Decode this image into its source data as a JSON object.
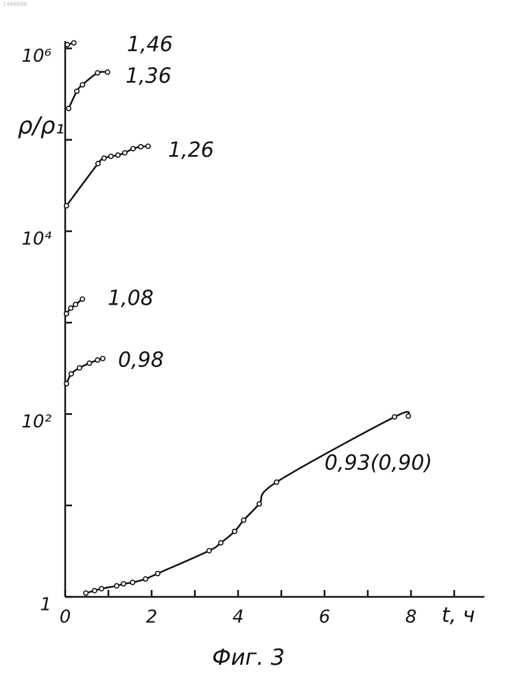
{
  "chart_data": {
    "type": "line",
    "doc_number": "1466696",
    "caption": "Фиг. 3",
    "x_label": "t, ч",
    "y_label": "ρ/ρ₁",
    "ylog": true,
    "xlim": [
      0,
      9.7
    ],
    "ylim": [
      1,
      1200000
    ],
    "xticks": [
      0,
      2,
      4,
      6,
      8
    ],
    "minor_xticks": [
      1,
      3,
      5,
      7,
      9
    ],
    "yticks": [
      1,
      {
        "value": 100,
        "label": "10²"
      },
      {
        "value": 10000,
        "label": "10⁴"
      },
      {
        "value": 1000000,
        "label": "10⁶"
      }
    ],
    "minor_yticks": [
      10,
      1000,
      100000
    ],
    "color": "#111111",
    "series": [
      {
        "name": "1,46",
        "x": [
          0.05,
          0.2
        ],
        "values": [
          1100000,
          1150000
        ]
      },
      {
        "name": "1,36",
        "x": [
          0.08,
          0.27,
          0.4,
          0.75,
          0.98
        ],
        "values": [
          220000,
          340000,
          400000,
          540000,
          550000
        ]
      },
      {
        "name": "1,26",
        "x": [
          0.03,
          0.76,
          0.9,
          1.06,
          1.22,
          1.38,
          1.57,
          1.75,
          1.92
        ],
        "values": [
          19000,
          55000,
          63000,
          66000,
          68000,
          72000,
          80000,
          84000,
          85000
        ]
      },
      {
        "name": "1,08",
        "x": [
          0.03,
          0.13,
          0.24,
          0.4
        ],
        "values": [
          1250,
          1440,
          1580,
          1810
        ]
      },
      {
        "name": "0,98",
        "x": [
          0.03,
          0.14,
          0.33,
          0.56,
          0.75,
          0.87
        ],
        "values": [
          215,
          275,
          320,
          360,
          390,
          405
        ]
      },
      {
        "name": "0,93(0,90)",
        "x": [
          0.48,
          0.68,
          0.84,
          1.19,
          1.35,
          1.56,
          1.86,
          2.14,
          3.33,
          3.6,
          3.92,
          4.13,
          4.49,
          4.89,
          7.62,
          7.94
        ],
        "values": [
          1.1,
          1.17,
          1.23,
          1.32,
          1.39,
          1.44,
          1.57,
          1.8,
          3.2,
          3.9,
          5.2,
          6.9,
          10.4,
          18,
          93,
          95
        ]
      }
    ]
  }
}
